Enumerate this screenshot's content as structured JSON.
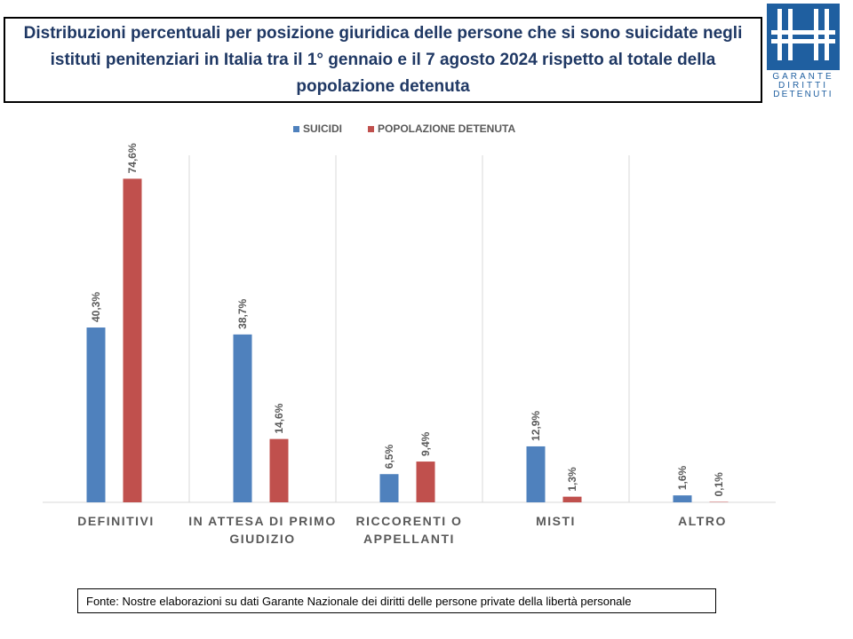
{
  "title": "Distribuzioni percentuali per posizione giuridica delle persone che si sono suicidate negli istituti penitenziari in Italia tra il 1° gennaio e il 7 agosto 2024  rispetto al totale della popolazione detenuta",
  "logo": {
    "lines": [
      "GARANTE",
      "DIRITTI",
      "DETENUTI"
    ],
    "color": "#1f5fa0"
  },
  "source": "Fonte: Nostre elaborazioni su dati Garante Nazionale dei diritti delle persone private della libertà personale",
  "chart_data": {
    "type": "bar",
    "categories": [
      [
        "DEFINITIVI"
      ],
      [
        "IN ATTESA DI PRIMO",
        "GIUDIZIO"
      ],
      [
        "RICCORENTI O",
        "APPELLANTI"
      ],
      [
        "MISTI"
      ],
      [
        "ALTRO"
      ]
    ],
    "series": [
      {
        "name": "SUICIDI",
        "color": "#4f81bd",
        "values": [
          40.3,
          38.7,
          6.5,
          12.9,
          1.6
        ],
        "labels": [
          "40,3%",
          "38,7%",
          "6,5%",
          "12,9%",
          "1,6%"
        ]
      },
      {
        "name": "POPOLAZIONE DETENUTA",
        "color": "#c0504d",
        "values": [
          74.6,
          14.6,
          9.4,
          1.3,
          0.1
        ],
        "labels": [
          "74,6%",
          "14,6%",
          "9,4%",
          "1,3%",
          "0,1%"
        ]
      }
    ],
    "ylim": [
      0,
      80
    ],
    "legend_position": "top-center",
    "grid": "vertical separators"
  }
}
